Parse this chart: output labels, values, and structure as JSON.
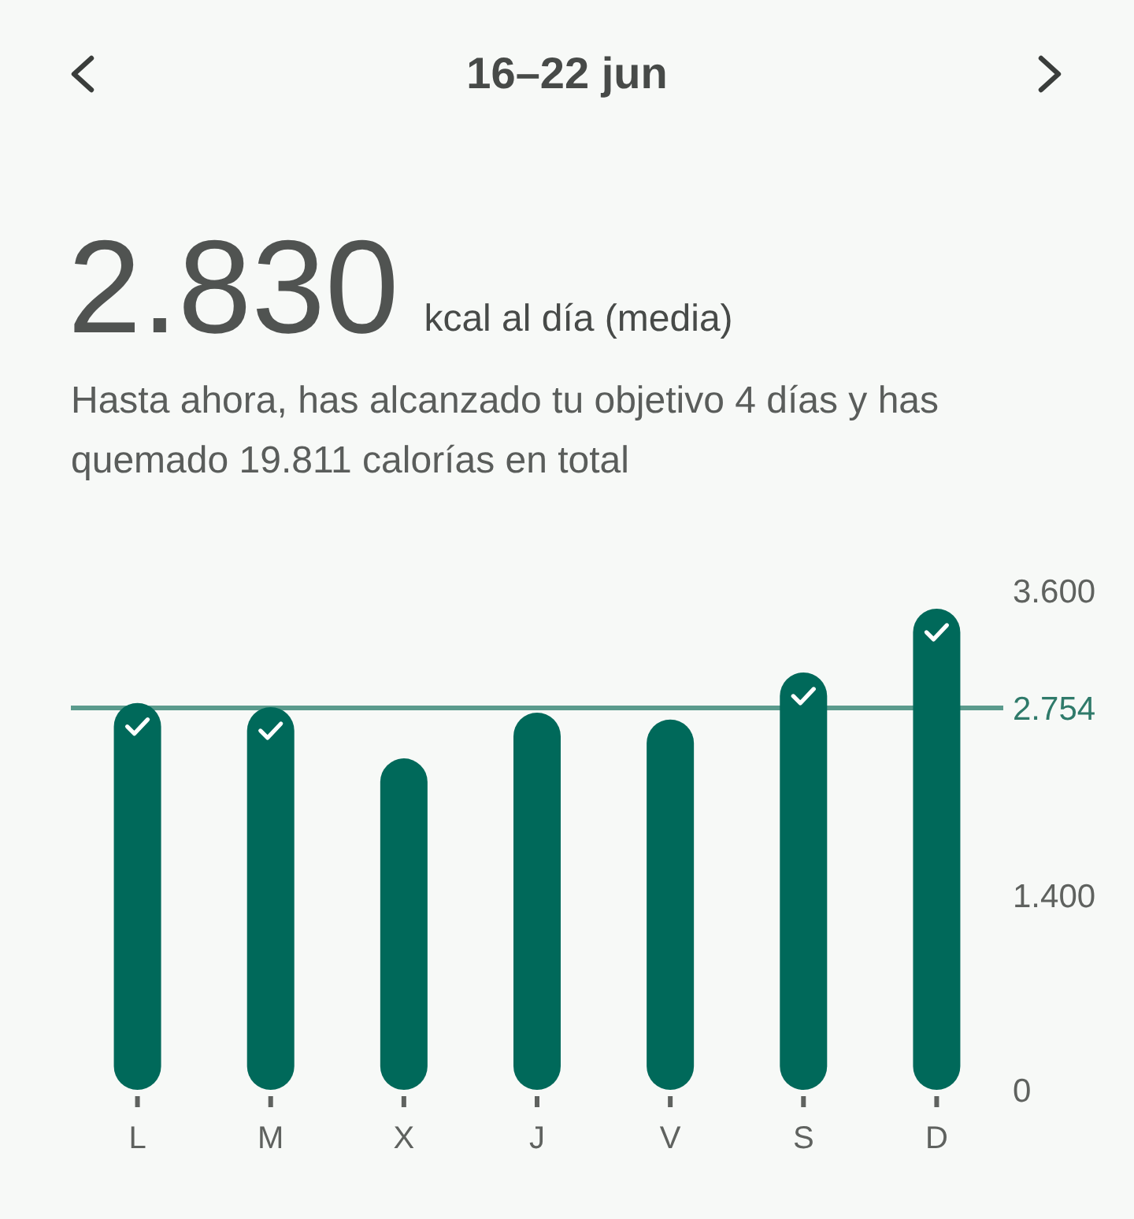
{
  "chart_data": {
    "type": "bar",
    "title": "16–22 jun",
    "annotations": [
      "2.830",
      "kcal al día (media)",
      "Hasta ahora, has alcanzado tu objetivo 4 días y has quemado 19.811 calorías en total"
    ],
    "categories": [
      "L",
      "M",
      "X",
      "J",
      "V",
      "S",
      "D"
    ],
    "values": [
      2790,
      2760,
      2390,
      2720,
      2670,
      3010,
      3470
    ],
    "color": "#00695a",
    "ylim": [
      0,
      3600
    ],
    "yticks": [
      0,
      {
        "value": 1400,
        "label": "1.400"
      },
      {
        "value": 3600,
        "label": "3.600"
      }
    ],
    "ref_lines": [
      {
        "axis": "y",
        "value": 2754,
        "label": "2.754",
        "color": "#5b9b8d"
      }
    ]
  }
}
